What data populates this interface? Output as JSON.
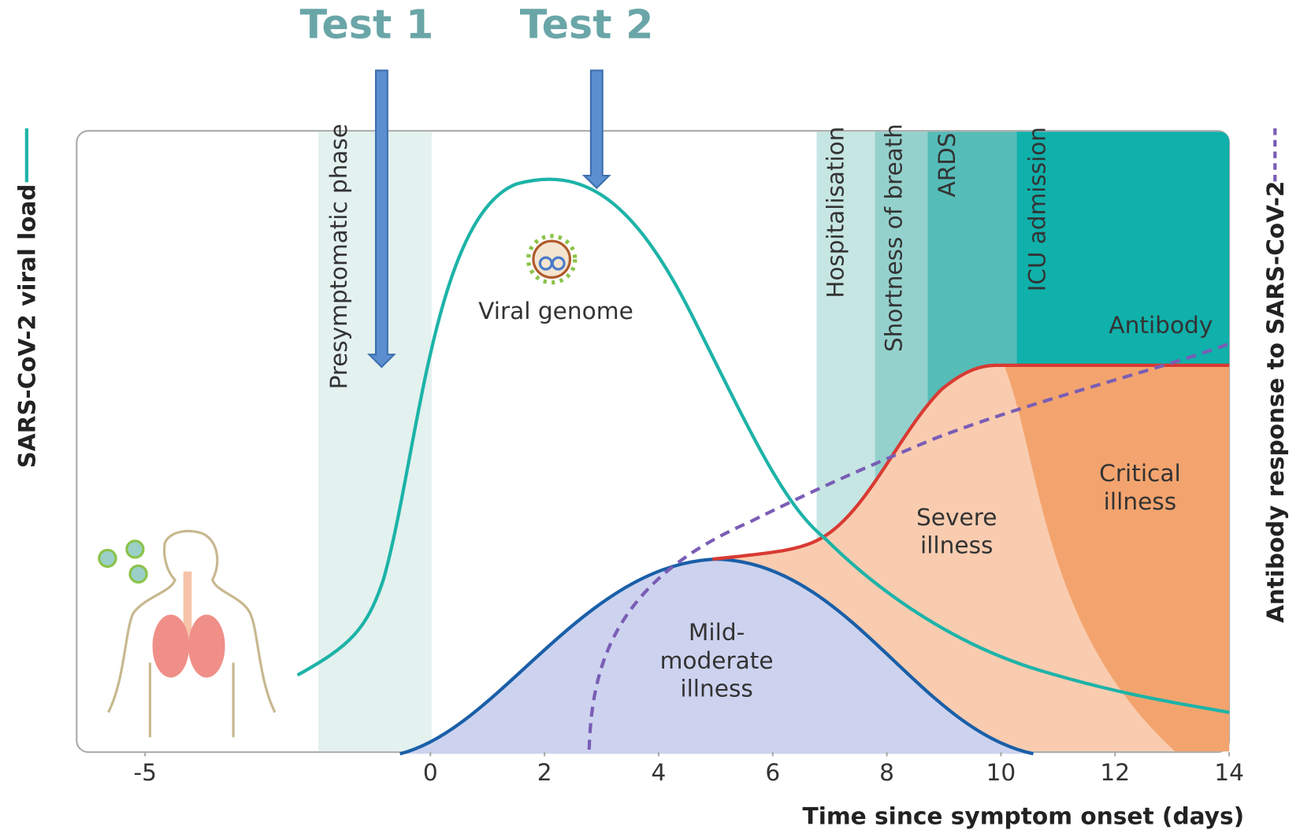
{
  "tests": [
    "Test 1",
    "Test 2"
  ],
  "y_label": "SARS-CoV-2 viral load",
  "y2_label": "Antibody response to SARS-CoV-2",
  "x_label": "Time since symptom onset (days)",
  "xlim": [
    -6.2,
    14
  ],
  "xticks": [
    -5,
    0,
    2,
    4,
    6,
    8,
    10,
    12,
    14
  ],
  "phases": [
    "Presymptomatic phase",
    "Hospitalisation",
    "Shortness of breath",
    "ARDS",
    "ICU admission"
  ],
  "labels": {
    "viral_genome": "Viral genome",
    "antibody": "Antibody",
    "mild": [
      "Mild-",
      "moderate",
      "illness"
    ],
    "severe": [
      "Severe",
      "illness"
    ],
    "critical": [
      "Critical",
      "illness"
    ]
  }
}
